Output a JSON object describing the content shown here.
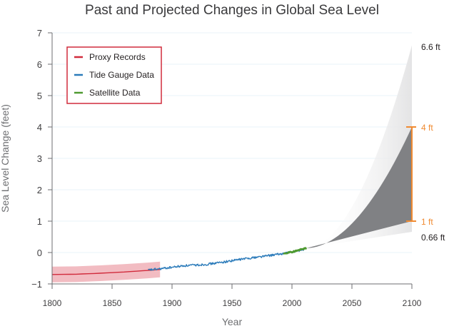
{
  "chart_data": {
    "type": "line",
    "title": "Past and Projected Changes in Global Sea Level",
    "xlabel": "Year",
    "ylabel": "Sea Level Change (feet)",
    "xlim": [
      1800,
      2100
    ],
    "ylim": [
      -1,
      7
    ],
    "x_ticks": [
      "1800",
      "1850",
      "1900",
      "1950",
      "2000",
      "2050",
      "2100"
    ],
    "y_ticks": [
      "−1",
      "0",
      "1",
      "2",
      "3",
      "4",
      "5",
      "6",
      "7"
    ],
    "grid": true,
    "legend_position": "top-left",
    "series": [
      {
        "name": "Proxy Records",
        "color": "#d12b3c",
        "band_color": "#f2bcc2",
        "x": [
          1800,
          1820,
          1840,
          1860,
          1880,
          1890
        ],
        "y": [
          -0.7,
          -0.69,
          -0.66,
          -0.62,
          -0.57,
          -0.54
        ],
        "band": 0.25
      },
      {
        "name": "Tide Gauge Data",
        "color": "#2b7bba",
        "x": [
          1880,
          1890,
          1900,
          1910,
          1920,
          1930,
          1940,
          1950,
          1960,
          1970,
          1980,
          1990,
          2000,
          2010
        ],
        "y": [
          -0.56,
          -0.52,
          -0.47,
          -0.42,
          -0.4,
          -0.37,
          -0.32,
          -0.26,
          -0.2,
          -0.15,
          -0.1,
          -0.05,
          0.02,
          0.1
        ]
      },
      {
        "name": "Satellite Data",
        "color": "#4f9a31",
        "x": [
          1993,
          2000,
          2005,
          2012
        ],
        "y": [
          -0.04,
          0.02,
          0.07,
          0.14
        ]
      }
    ],
    "projection": {
      "start_year": 2012,
      "start_value": 0.14,
      "end_year": 2100,
      "likely_range": [
        1,
        4
      ],
      "full_range": [
        0.66,
        6.6
      ],
      "likely_color": "#808184"
    },
    "annotations": [
      {
        "text": "6.6 ft",
        "value": 6.6,
        "color": "#231f20"
      },
      {
        "text": "4 ft",
        "value": 4,
        "color": "#f08a31"
      },
      {
        "text": "1 ft",
        "value": 1,
        "color": "#f08a31"
      },
      {
        "text": "0.66 ft",
        "value": 0.66,
        "color": "#231f20"
      }
    ],
    "range_bar_color": "#f08a31"
  }
}
